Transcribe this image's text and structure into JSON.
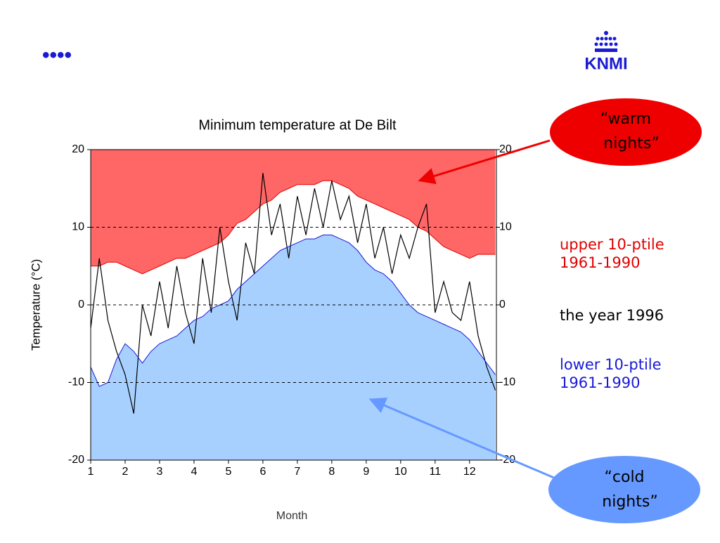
{
  "slide": {
    "bullet": "••••",
    "logo": "KNMI"
  },
  "chart_data": {
    "type": "area",
    "title": "Minimum temperature at De Bilt",
    "xlabel": "Month",
    "ylabel": "Temperature (°C)",
    "x": [
      1,
      1.25,
      1.5,
      1.75,
      2,
      2.25,
      2.5,
      2.75,
      3,
      3.25,
      3.5,
      3.75,
      4,
      4.25,
      4.5,
      4.75,
      5,
      5.25,
      5.5,
      5.75,
      6,
      6.25,
      6.5,
      6.75,
      7,
      7.25,
      7.5,
      7.75,
      8,
      8.25,
      8.5,
      8.75,
      9,
      9.25,
      9.5,
      9.75,
      10,
      10.25,
      10.5,
      10.75,
      11,
      11.25,
      11.5,
      11.75,
      12,
      12.25,
      12.5,
      12.75
    ],
    "series": [
      {
        "name": "upper 10-ptile 1961-1990",
        "color": "#e00000",
        "fill": "#ff6666",
        "fill_side": "above",
        "values": [
          5,
          5,
          5.5,
          5.5,
          5,
          4.5,
          4,
          4.5,
          5,
          5.5,
          6,
          6,
          6.5,
          7,
          7.5,
          8,
          9,
          10.5,
          11,
          12,
          13,
          13.5,
          14.5,
          15,
          15.5,
          15.5,
          15.5,
          16,
          16,
          15.5,
          15,
          14,
          13.5,
          13,
          12.5,
          12,
          11.5,
          11,
          10,
          9.5,
          8.5,
          7.5,
          7,
          6.5,
          6,
          6.5,
          6.5,
          6.5
        ]
      },
      {
        "name": "the year 1996",
        "color": "#000000",
        "fill_side": "none",
        "values": [
          -3,
          6,
          -2,
          -6,
          -9,
          -14,
          0,
          -4,
          3,
          -3,
          5,
          -1,
          -5,
          6,
          -1,
          10,
          3,
          -2,
          8,
          4,
          17,
          9,
          13,
          6,
          14,
          9,
          15,
          10,
          16,
          11,
          14,
          8,
          13,
          6,
          10,
          4,
          9,
          6,
          10,
          13,
          -1,
          3,
          -1,
          -2,
          3,
          -4,
          -8,
          -11
        ]
      },
      {
        "name": "lower 10-ptile 1961-1990",
        "color": "#1a1ad4",
        "fill": "#a8d0ff",
        "fill_side": "below",
        "values": [
          -8,
          -10.5,
          -10,
          -7,
          -5,
          -6,
          -7.5,
          -6,
          -5,
          -4.5,
          -4,
          -3,
          -2,
          -1.5,
          -0.5,
          0,
          0.5,
          2,
          3,
          4,
          5,
          6,
          7,
          7.5,
          8,
          8.5,
          8.5,
          9,
          9,
          8.5,
          8,
          7,
          5.5,
          4.5,
          4,
          3,
          1.5,
          0,
          -1,
          -1.5,
          -2,
          -2.5,
          -3,
          -3.5,
          -4.5,
          -6,
          -7.5,
          -9
        ]
      }
    ],
    "xlim": [
      1,
      12.78
    ],
    "xticks": [
      1,
      2,
      3,
      4,
      5,
      6,
      7,
      8,
      9,
      10,
      11,
      12
    ],
    "ylim": [
      -20,
      20
    ],
    "yticks": [
      -20,
      -10,
      0,
      10,
      20
    ],
    "y2lim": [
      -20,
      20
    ],
    "y2ticks": [
      -20,
      -10,
      0,
      10,
      20
    ],
    "grid": true,
    "annotations": [
      {
        "text": "“warm nights”",
        "color": "#ee0000"
      },
      {
        "text": "“cold nights”",
        "color": "#6699ff"
      }
    ]
  }
}
